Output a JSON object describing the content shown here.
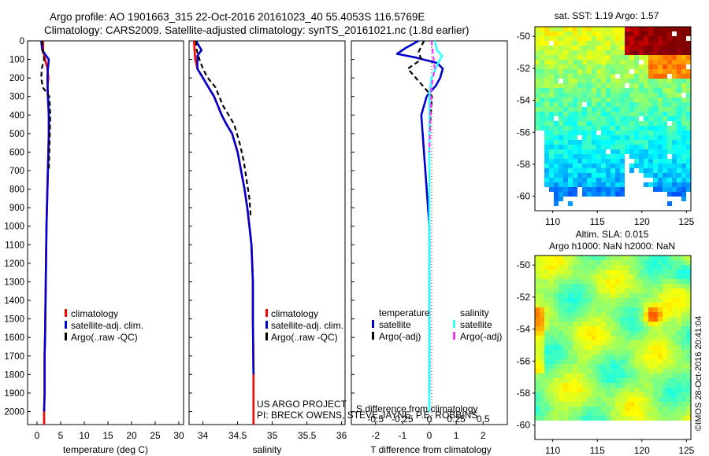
{
  "header": {
    "line1": "Argo profile: AO 1901663_315 22-Oct-2016 20161023_40 55.4053S 116.5769E",
    "line2": "Climatology: CARS2009. Satellite-adjusted climatology: synTS_20161021.nc (1.8d earlier)"
  },
  "credits": {
    "line1": "US ARGO PROJECT",
    "line2": "PI: BRECK OWENS, STEVE JAYNE, P.E. ROBBINS"
  },
  "watermark": "©IMOS 28-Oct-2016 20:41:04",
  "colors": {
    "climatology": "#ff0000",
    "satellite": "#0000cc",
    "argo": "#000000",
    "sal_satellite": "#33ffff",
    "sal_argo": "#ff33ff"
  },
  "chart_data": [
    {
      "type": "line",
      "id": "temperature",
      "xlabel": "temperature (deg C)",
      "xlim": [
        -2,
        31
      ],
      "ylim": [
        2070,
        0
      ],
      "xticks": [
        0,
        5,
        10,
        15,
        20,
        25,
        30
      ],
      "yticks": [
        0,
        100,
        200,
        300,
        400,
        500,
        600,
        700,
        800,
        900,
        1000,
        1100,
        1200,
        1300,
        1400,
        1500,
        1600,
        1700,
        1800,
        1900,
        2000
      ],
      "legend": [
        "climatology",
        "satellite-adj. clim.",
        "Argo(..raw -QC)"
      ],
      "legend_placement": "center-right",
      "series": [
        {
          "name": "climatology",
          "style": "solid",
          "x": [
            1.3,
            1.3,
            1.7,
            2.2,
            2.4,
            2.2,
            2.3,
            2.5,
            2.5,
            2.4,
            2.3,
            2.2,
            2.1,
            2.0,
            1.9,
            1.8,
            1.7,
            1.6,
            1.6,
            1.6,
            1.5,
            1.5
          ],
          "y": [
            0,
            50,
            100,
            150,
            200,
            250,
            300,
            400,
            500,
            600,
            700,
            800,
            900,
            1000,
            1200,
            1400,
            1600,
            1700,
            1800,
            1900,
            2000,
            2070
          ]
        },
        {
          "name": "satellite-adj. clim.",
          "style": "solid",
          "x": [
            0.9,
            1.1,
            2.2,
            2.5,
            2.3,
            2.2,
            2.3,
            2.5,
            2.5,
            2.4,
            2.3,
            2.2,
            2.1,
            2.0,
            1.9,
            1.8,
            1.7,
            1.6,
            1.6,
            1.6,
            1.5
          ],
          "y": [
            0,
            50,
            90,
            100,
            150,
            200,
            300,
            400,
            500,
            600,
            700,
            800,
            900,
            1000,
            1200,
            1400,
            1600,
            1700,
            1800,
            1900,
            2000
          ]
        },
        {
          "name": "Argo(..raw -QC)",
          "style": "dashed",
          "x": [
            1.1,
            1.2,
            1.5,
            1.0,
            0.9,
            1.2,
            2.6,
            2.8,
            2.7,
            2.6,
            2.5
          ],
          "y": [
            0,
            50,
            100,
            150,
            200,
            250,
            300,
            400,
            500,
            600,
            700
          ]
        }
      ]
    },
    {
      "type": "line",
      "id": "salinity",
      "xlabel": "salinity",
      "xlim": [
        33.8,
        36.05
      ],
      "ylim": [
        2070,
        0
      ],
      "xticks": [
        34,
        34.5,
        35,
        35.5,
        36
      ],
      "legend": [
        "climatology",
        "satellite-adj. clim.",
        "Argo(..raw -QC)"
      ],
      "legend_placement": "center-right",
      "series": [
        {
          "name": "climatology",
          "style": "solid",
          "x": [
            33.87,
            33.88,
            33.89,
            33.92,
            34.0,
            34.08,
            34.16,
            34.27,
            34.34,
            34.42,
            34.5,
            34.55,
            34.6,
            34.64,
            34.67,
            34.7,
            34.71,
            34.72,
            34.72,
            34.72,
            34.73,
            34.73
          ],
          "y": [
            0,
            50,
            100,
            150,
            200,
            250,
            300,
            400,
            450,
            500,
            600,
            700,
            800,
            900,
            1000,
            1100,
            1200,
            1300,
            1400,
            1500,
            1800,
            2070
          ]
        },
        {
          "name": "satellite-adj. clim.",
          "style": "solid",
          "x": [
            33.9,
            33.98,
            33.92,
            33.92,
            34.0,
            34.08,
            34.16,
            34.27,
            34.34,
            34.42,
            34.5,
            34.55,
            34.6,
            34.64,
            34.67,
            34.7,
            34.71,
            34.72,
            34.72,
            34.72,
            34.73
          ],
          "y": [
            0,
            50,
            80,
            150,
            200,
            250,
            300,
            400,
            450,
            500,
            600,
            700,
            800,
            900,
            1000,
            1100,
            1200,
            1300,
            1400,
            1500,
            1800
          ]
        },
        {
          "name": "Argo(..raw -QC)",
          "style": "dashed",
          "x": [
            33.9,
            33.91,
            33.95,
            34.0,
            34.07,
            34.18,
            34.29,
            34.37,
            34.45,
            34.53,
            34.59,
            34.63,
            34.67,
            34.69
          ],
          "y": [
            0,
            50,
            100,
            150,
            200,
            250,
            350,
            400,
            450,
            550,
            650,
            750,
            850,
            950
          ]
        }
      ]
    },
    {
      "type": "line",
      "id": "difference",
      "xlabel": "T difference from climatology",
      "xlabel_top": "S difference from climatology",
      "xlim": [
        -2.9,
        2.9
      ],
      "ylim": [
        2070,
        0
      ],
      "xticks": [
        -2,
        -1,
        0,
        1,
        2
      ],
      "xticks_top": [
        "-0.5",
        "-0.25",
        "0",
        "0.25",
        "0.5"
      ],
      "legend_headings": [
        "temperature",
        "salinity"
      ],
      "legend": [
        "satellite",
        "Argo(-adj)",
        "satellite",
        "Argo(-adj)"
      ],
      "legend_placement": "center",
      "series": [
        {
          "name": "temperature satellite",
          "style": "solid",
          "x": [
            -0.4,
            -0.9,
            -1.2,
            -0.5,
            0.3,
            0.5,
            0.4,
            0.25,
            -0.1,
            -0.3,
            -0.2,
            -0.1,
            0.0,
            0.0,
            0.0,
            0.0
          ],
          "y": [
            0,
            40,
            70,
            90,
            120,
            150,
            200,
            240,
            300,
            400,
            600,
            800,
            1000,
            1200,
            1600,
            1900
          ]
        },
        {
          "name": "temperature Argo(-adj)",
          "style": "dashed",
          "x": [
            -0.2,
            -0.4,
            -0.3,
            -0.8,
            -0.5,
            -0.2,
            0.1,
            0.05,
            0.0
          ],
          "y": [
            0,
            60,
            100,
            150,
            200,
            250,
            300,
            400,
            500
          ]
        },
        {
          "name": "salinity satellite",
          "style": "solid",
          "x": [
            0.05,
            0.07,
            0.12,
            0.08,
            0.02,
            0.0,
            0.0,
            0.0,
            0.0,
            0.0
          ],
          "y": [
            0,
            50,
            80,
            120,
            200,
            300,
            500,
            800,
            1200,
            2000
          ]
        },
        {
          "name": "salinity Argo(-adj)",
          "style": "dashed",
          "x": [
            0.02,
            0.03,
            0.05,
            0.02,
            0.01,
            0.0
          ],
          "y": [
            0,
            50,
            150,
            250,
            400,
            600
          ]
        }
      ]
    },
    {
      "type": "heatmap",
      "id": "sst-map",
      "title": "sat. SST: 1.19 Argo: 1.57",
      "xlim": [
        108,
        125.5
      ],
      "ylim": [
        -60.9,
        -49.4
      ],
      "xticks": [
        110,
        115,
        120,
        125
      ],
      "yticks": [
        -50,
        -52,
        -54,
        -56,
        -58,
        -60
      ]
    },
    {
      "type": "heatmap",
      "id": "sla-map",
      "title": "Altim. SLA: 0.015",
      "subtitle": "Argo h1000: NaN h2000: NaN",
      "xlim": [
        108,
        125.5
      ],
      "ylim": [
        -60.9,
        -49.4
      ],
      "xticks": [
        110,
        115,
        120,
        125
      ],
      "yticks": [
        -50,
        -52,
        -54,
        -56,
        -58,
        -60
      ]
    }
  ]
}
